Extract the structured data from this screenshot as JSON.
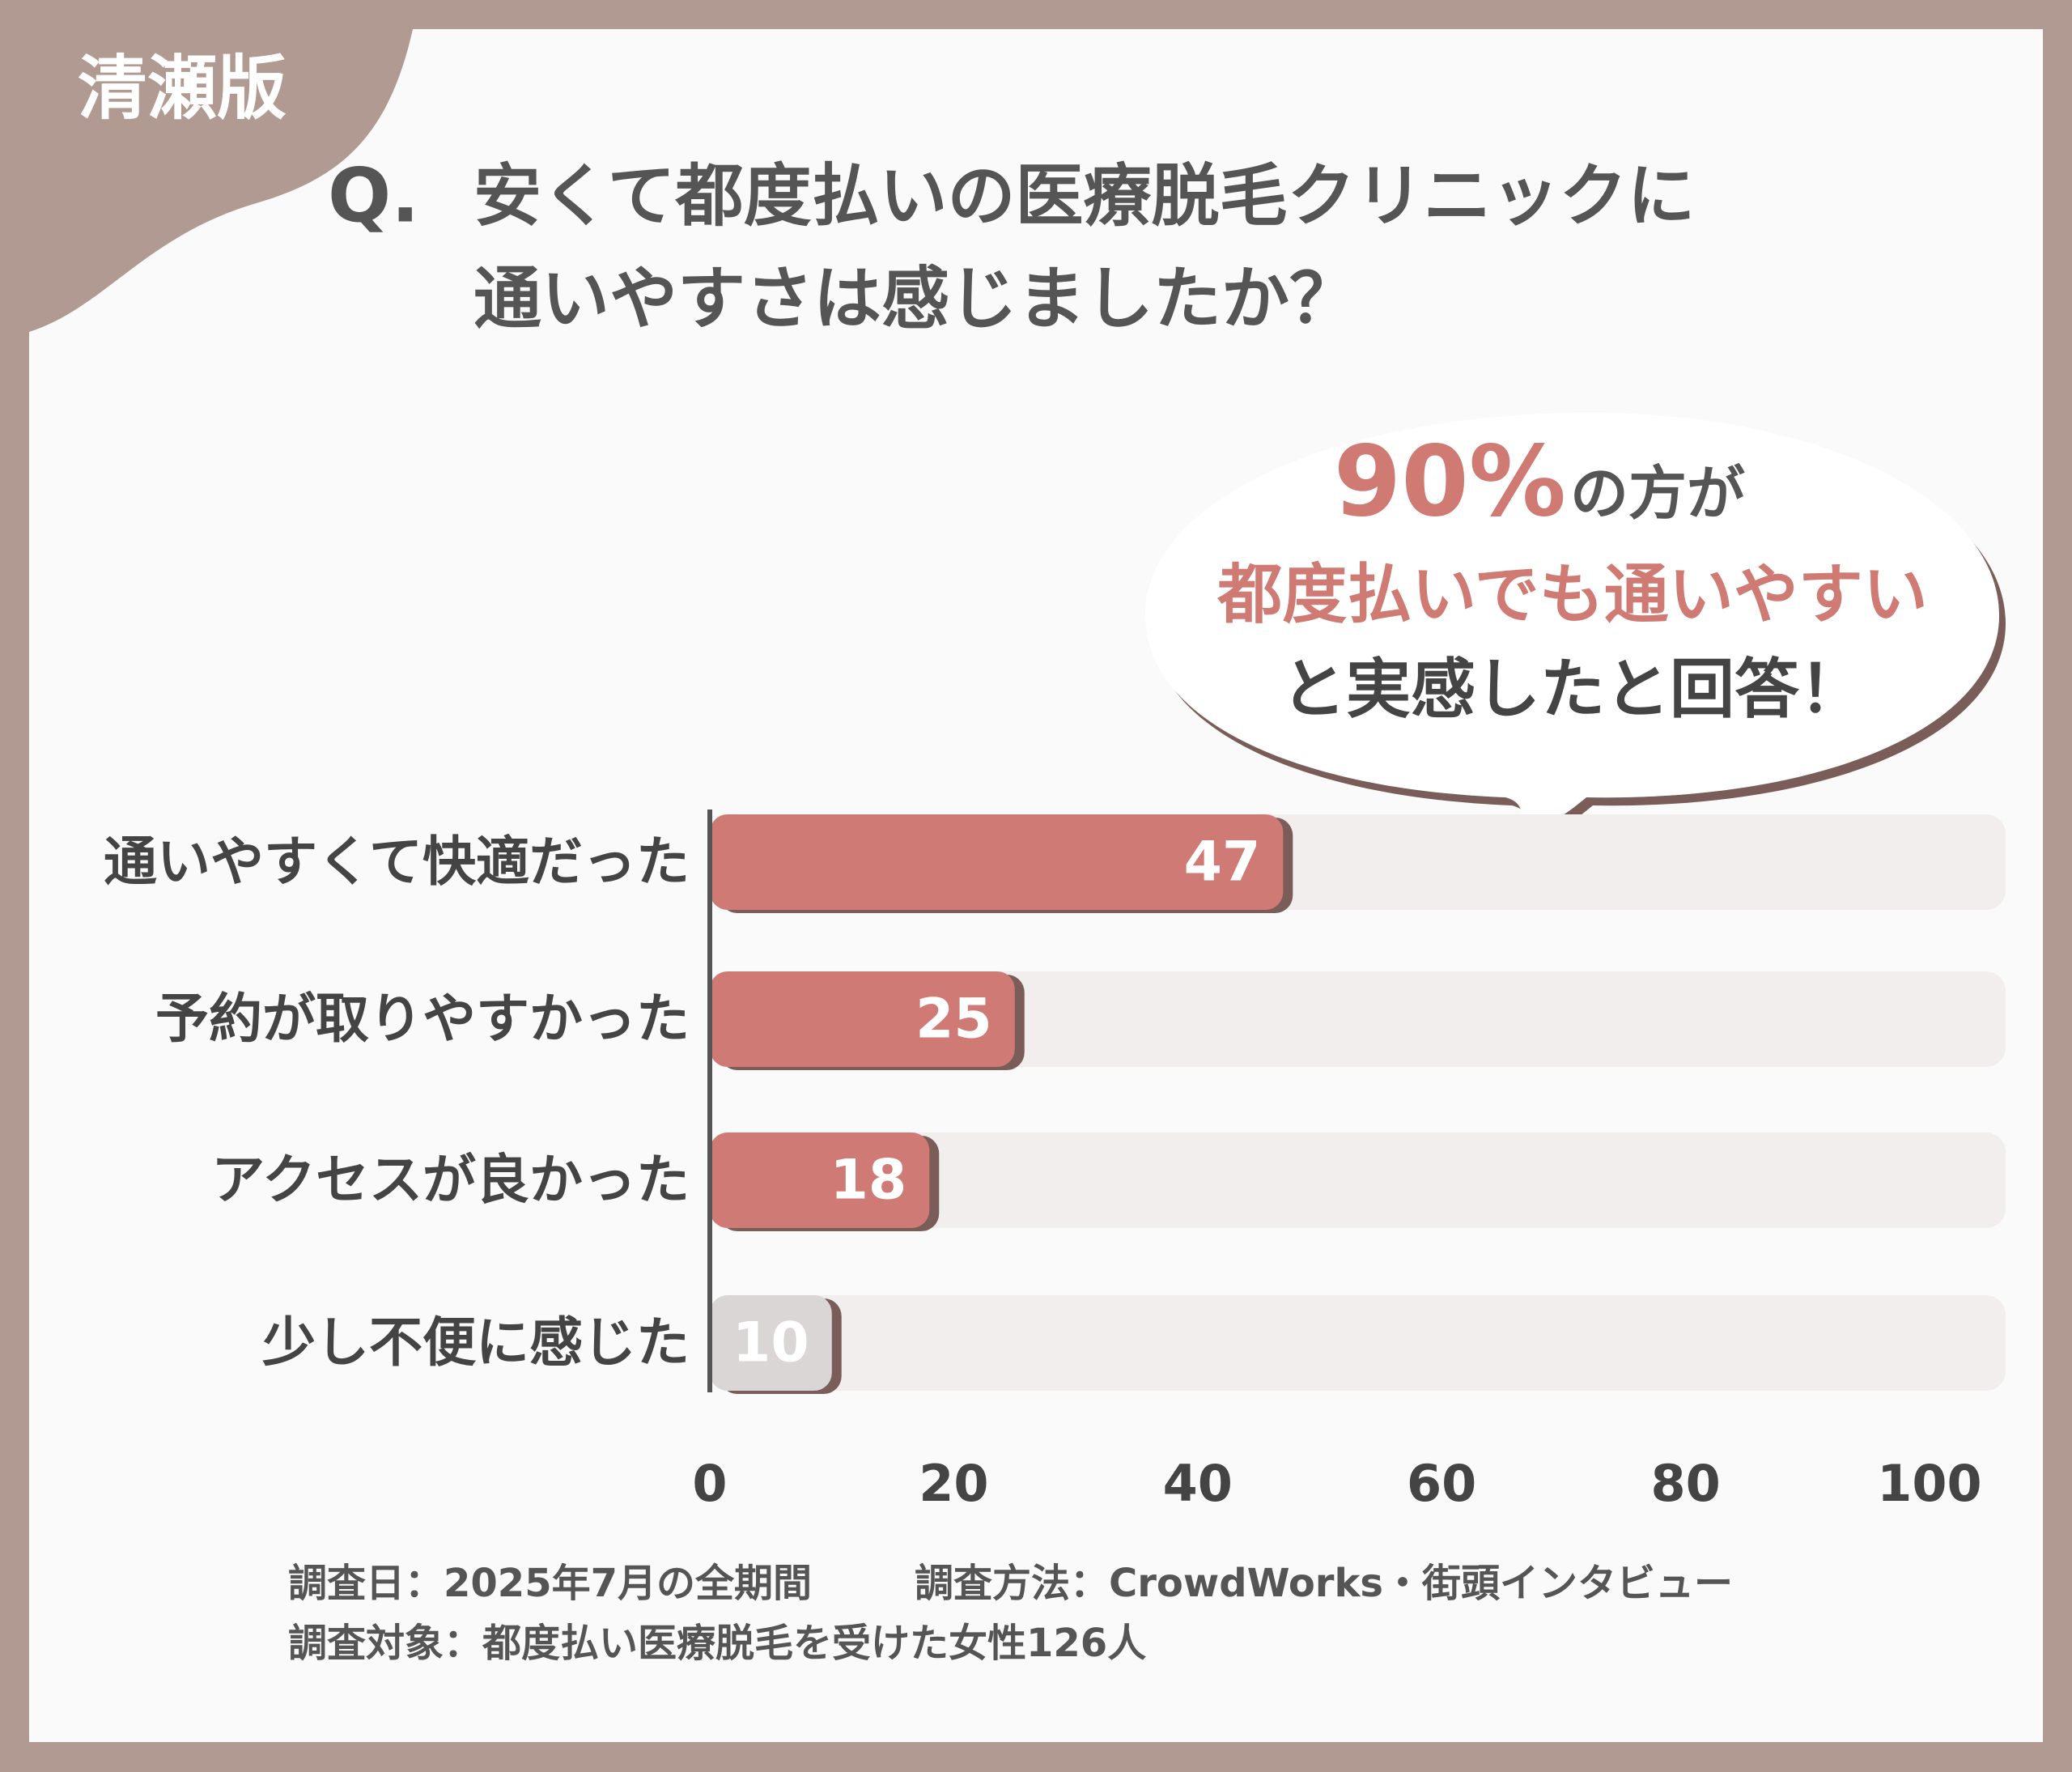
{
  "chart_data": {
    "type": "bar",
    "orientation": "horizontal",
    "badge": "清瀬版",
    "question_label": "Q.",
    "title": [
      "安くて都度払いの医療脱毛クリニックに",
      "通いやすさは感じましたか？"
    ],
    "callout": {
      "highlight": "90%",
      "line1_rest": "の方が",
      "line2": "都度払いでも通いやすい",
      "line3": "と実感したと回答！"
    },
    "categories": [
      "通いやすくて快適だった",
      "予約が取りやすかった",
      "アクセスが良かった",
      "少し不便に感じた"
    ],
    "values": [
      47,
      25,
      18,
      10
    ],
    "colors": [
      "#d07a74",
      "#d07a74",
      "#d07a74",
      "#d9d6d5"
    ],
    "xlim": [
      0,
      100
    ],
    "xticks": [
      0,
      20,
      40,
      60,
      80,
      100
    ],
    "grid": false,
    "footnotes": [
      "調査日：2025年7月の全期間",
      "調査方法：CrowdWorks・街頭インタビュー",
      "調査対象：都度払い医療脱毛を受けた女性126人"
    ]
  }
}
